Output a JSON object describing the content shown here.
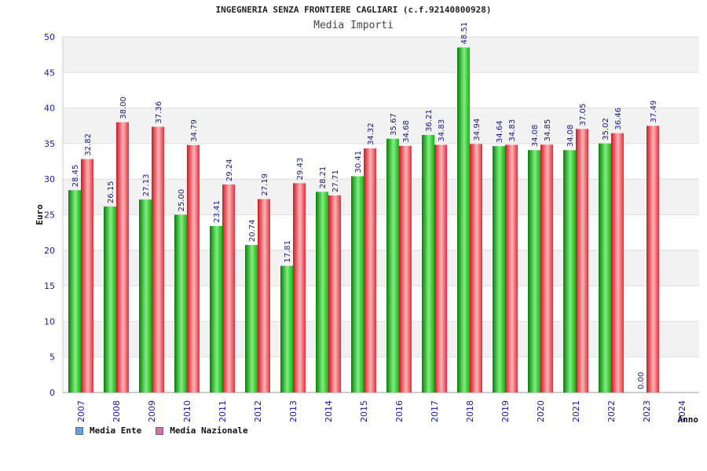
{
  "title": "INGEGNERIA SENZA FRONTIERE CAGLIARI (c.f.92140800928)",
  "subtitle": "Media Importi",
  "colors": {
    "ente": "#11b511",
    "nazionale": "#e0303a",
    "legend_ente": "#5ba6e8",
    "legend_nazionale": "#d86ea6",
    "axis_text": "#1a1aa0"
  },
  "chart_data": {
    "type": "bar",
    "title": "INGEGNERIA SENZA FRONTIERE CAGLIARI (c.f.92140800928)",
    "subtitle": "Media Importi",
    "xlabel": "Anno",
    "ylabel": "Euro",
    "ylim": [
      0,
      50
    ],
    "yticks": [
      "0",
      "5",
      "10",
      "15",
      "20",
      "25",
      "30",
      "35",
      "40",
      "45",
      "50"
    ],
    "categories": [
      "2007",
      "2008",
      "2009",
      "2010",
      "2011",
      "2012",
      "2013",
      "2014",
      "2015",
      "2016",
      "2017",
      "2018",
      "2019",
      "2020",
      "2021",
      "2022",
      "2023",
      "2024"
    ],
    "series": [
      {
        "name": "Media Ente",
        "values": [
          28.45,
          26.15,
          27.13,
          25.0,
          23.41,
          20.74,
          17.81,
          28.21,
          30.41,
          35.67,
          36.21,
          48.51,
          34.64,
          34.08,
          34.08,
          35.02,
          0.0,
          null
        ],
        "labels": [
          "28.45",
          "26.15",
          "27.13",
          "25.00",
          "23.41",
          "20.74",
          "17.81",
          "28.21",
          "30.41",
          "35.67",
          "36.21",
          "48.51",
          "34.64",
          "34.08",
          "34.08",
          "35.02",
          "0.00",
          ""
        ]
      },
      {
        "name": "Media Nazionale",
        "values": [
          32.82,
          38.0,
          37.36,
          34.79,
          29.24,
          27.19,
          29.43,
          27.71,
          34.32,
          34.68,
          34.83,
          34.94,
          34.83,
          34.85,
          37.05,
          36.46,
          37.49,
          null
        ],
        "labels": [
          "32.82",
          "38.00",
          "37.36",
          "34.79",
          "29.24",
          "27.19",
          "29.43",
          "27.71",
          "34.32",
          "34.68",
          "34.83",
          "34.94",
          "34.83",
          "34.85",
          "37.05",
          "36.46",
          "37.49",
          ""
        ]
      }
    ],
    "grid": true,
    "legend_position": "bottom-left"
  }
}
